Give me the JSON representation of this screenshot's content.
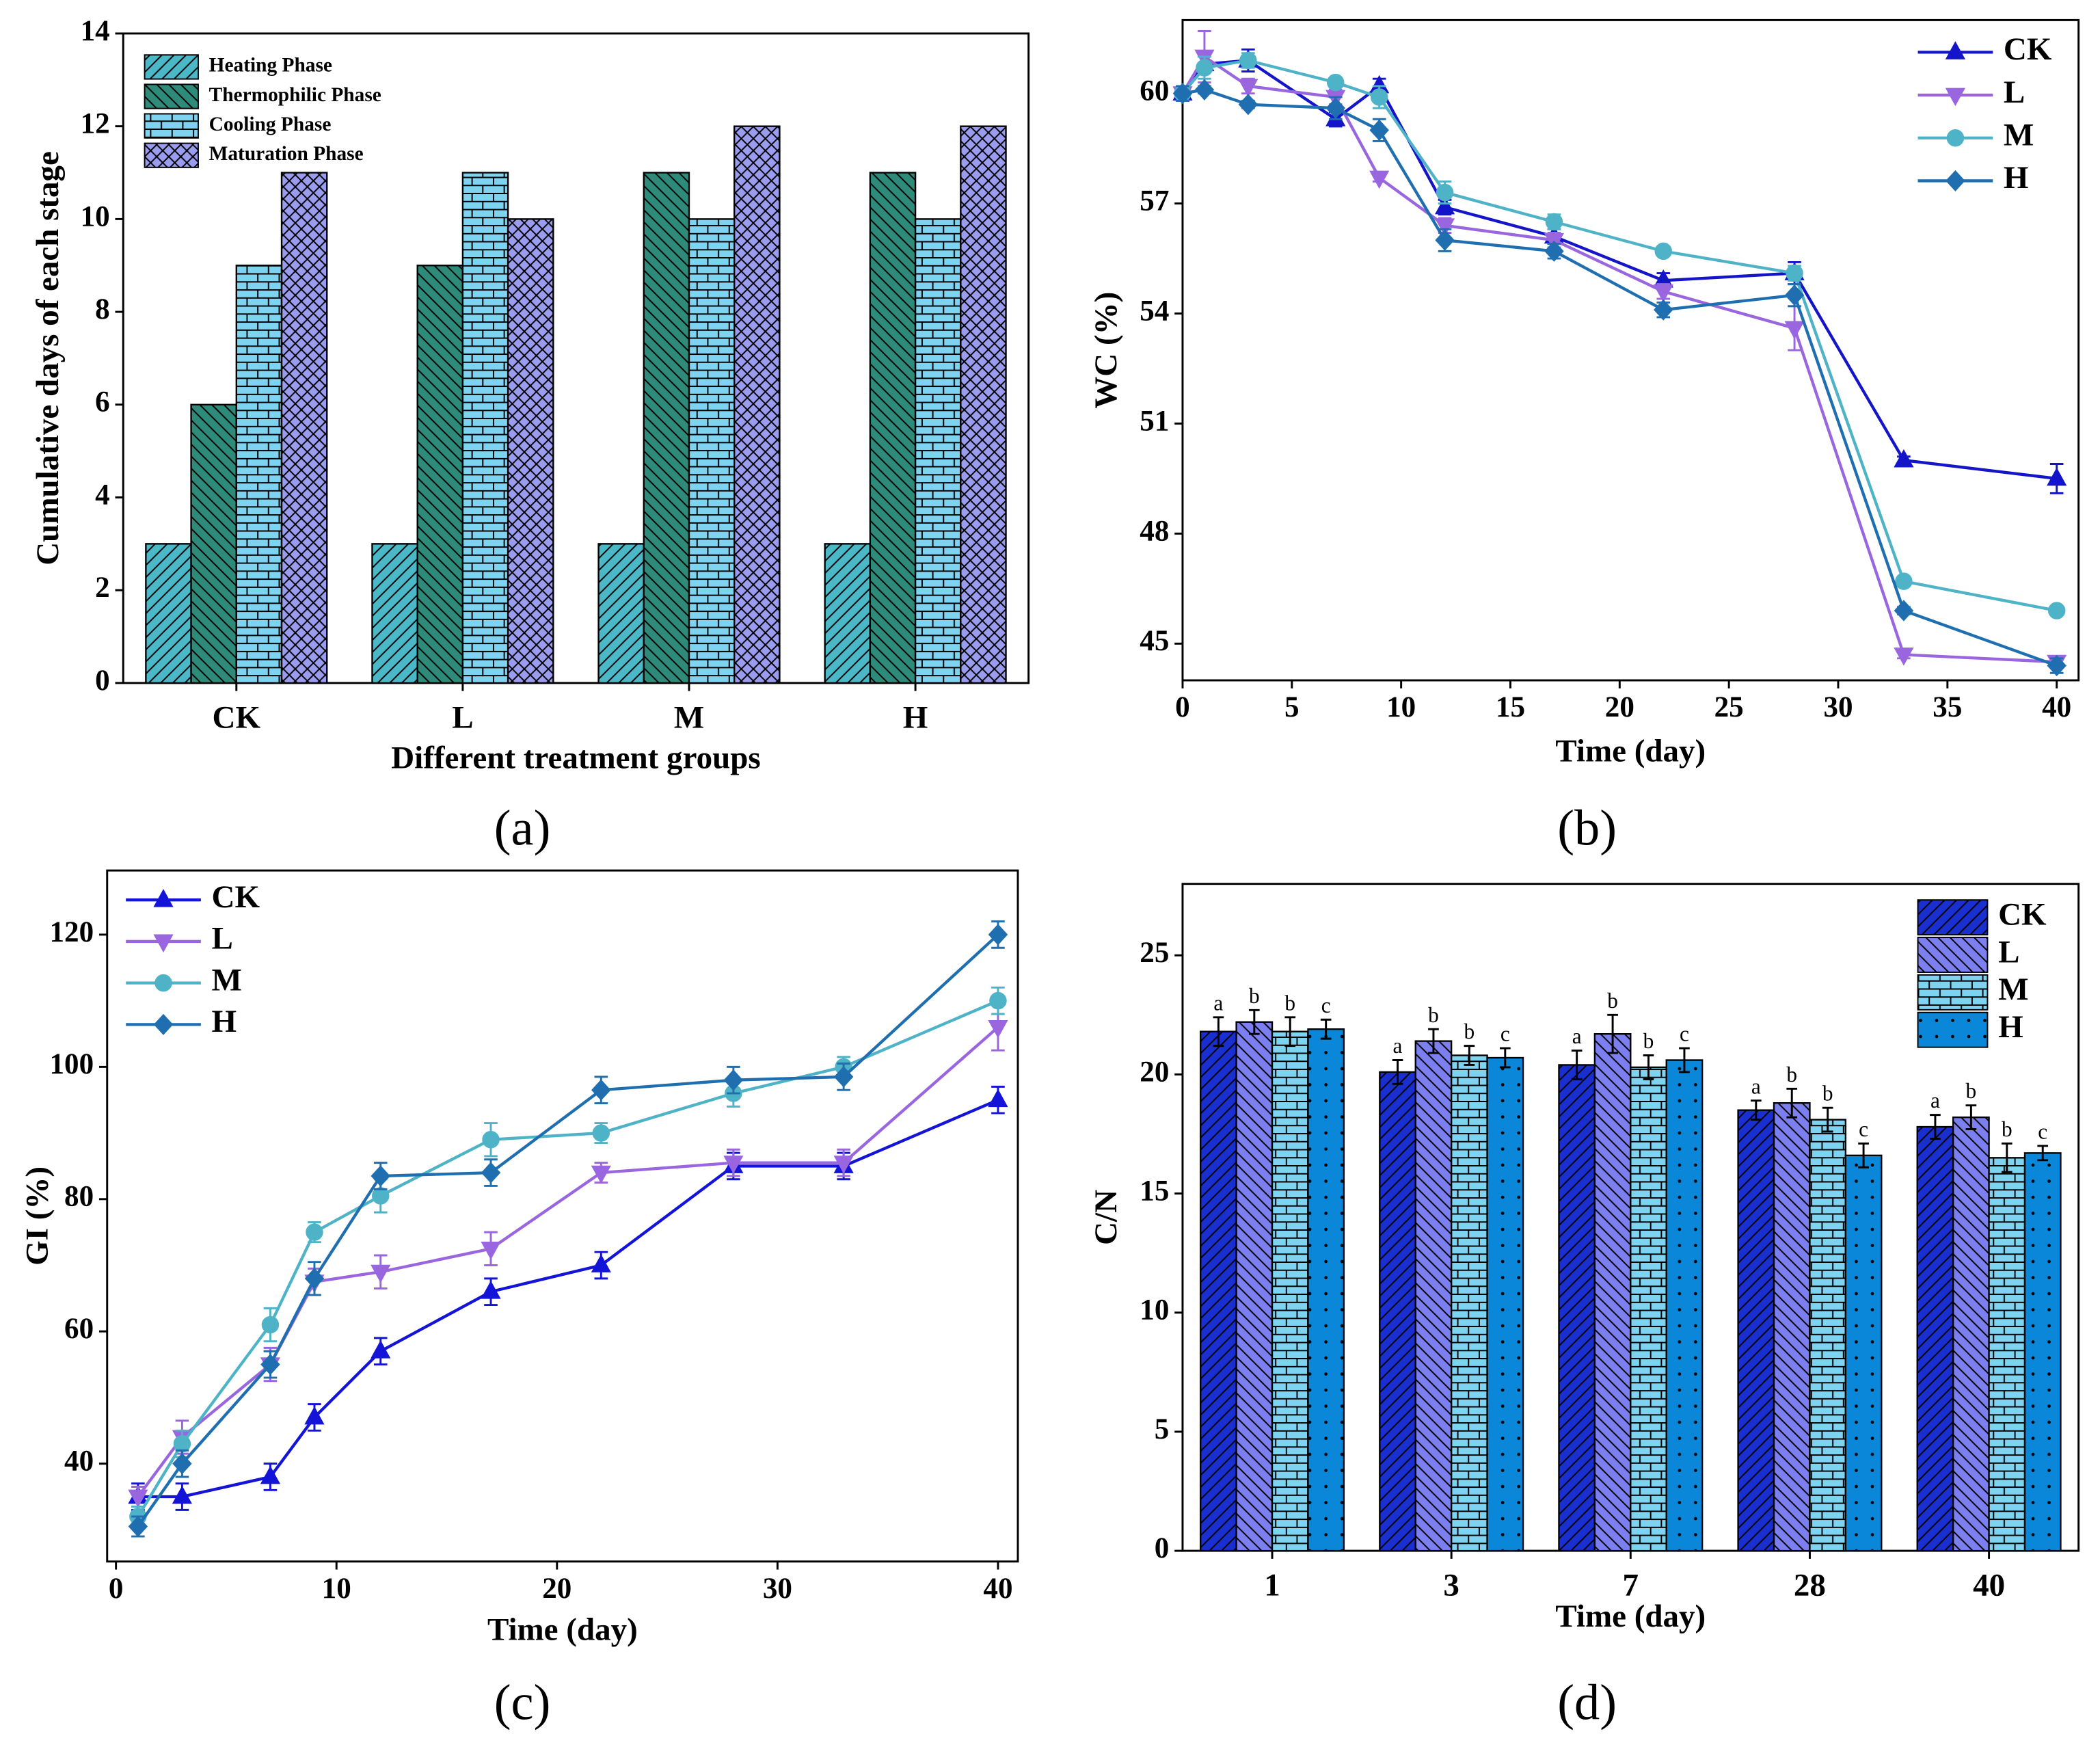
{
  "chart_data": [
    {
      "type": "bar",
      "panel_label": "(a)",
      "xlabel": "Different treatment groups",
      "ylabel": "Cumulative days of each stage",
      "categories": [
        "CK",
        "L",
        "M",
        "H"
      ],
      "ylim": [
        0,
        14
      ],
      "yticks": [
        0,
        2,
        4,
        6,
        8,
        10,
        12,
        14
      ],
      "legend": "upper left",
      "series": [
        {
          "name": "Heating Phase",
          "color": "#4bb8c8",
          "pattern": "hatch",
          "values": [
            3,
            3,
            3,
            3
          ]
        },
        {
          "name": "Thermophilic Phase",
          "color": "#2e8b7a",
          "pattern": "backhatch",
          "values": [
            6,
            9,
            11,
            11
          ]
        },
        {
          "name": "Cooling Phase",
          "color": "#7dd3f0",
          "pattern": "brick",
          "values": [
            9,
            11,
            10,
            10
          ]
        },
        {
          "name": "Maturation Phase",
          "color": "#9a9cf0",
          "pattern": "crosshatch",
          "values": [
            11,
            10,
            12,
            12
          ]
        }
      ]
    },
    {
      "type": "line",
      "panel_label": "(b)",
      "xlabel": "Time (day)",
      "ylabel": "WC (%)",
      "x": [
        0,
        1,
        3,
        7,
        9,
        12,
        17,
        22,
        28,
        33,
        40
      ],
      "xlim": [
        0,
        41
      ],
      "xticks": [
        0,
        5,
        10,
        15,
        20,
        25,
        30,
        35,
        40
      ],
      "ylim": [
        44,
        62
      ],
      "yticks": [
        45,
        48,
        51,
        54,
        57,
        60
      ],
      "legend": "upper right",
      "series": [
        {
          "name": "CK",
          "color": "#1414c8",
          "marker": "triangle",
          "values": [
            60,
            60.8,
            60.9,
            59.3,
            60.2,
            56.9,
            56.1,
            54.9,
            55.1,
            50.0,
            49.5
          ],
          "errors": [
            0.2,
            0.2,
            0.3,
            0.2,
            0.2,
            0.2,
            0.2,
            0.2,
            0.3,
            0.1,
            0.4
          ]
        },
        {
          "name": "L",
          "color": "#9966e0",
          "marker": "triangle-down",
          "values": [
            60,
            61,
            60.2,
            59.9,
            57.7,
            56.4,
            56.0,
            54.6,
            53.6,
            44.7,
            44.5
          ],
          "errors": [
            0.2,
            0.7,
            0.2,
            0.2,
            0.1,
            0.2,
            0.2,
            0.2,
            0.6,
            0.1,
            0.1
          ]
        },
        {
          "name": "M",
          "color": "#4fb3c8",
          "marker": "circle",
          "values": [
            60,
            60.7,
            60.9,
            60.3,
            59.9,
            57.3,
            56.5,
            55.7,
            55.1,
            46.7,
            45.9
          ],
          "errors": [
            0.2,
            0.3,
            0.2,
            0.1,
            0.3,
            0.3,
            0.2,
            0.1,
            0.2,
            0.1,
            0.1
          ]
        },
        {
          "name": "H",
          "color": "#1f6fb0",
          "marker": "diamond",
          "values": [
            60,
            60.1,
            59.7,
            59.6,
            59.0,
            56.0,
            55.7,
            54.1,
            54.5,
            45.9,
            44.4
          ],
          "errors": [
            0.2,
            0.1,
            0.1,
            0.3,
            0.3,
            0.3,
            0.2,
            0.2,
            0.3,
            0.1,
            0.2
          ]
        }
      ]
    },
    {
      "type": "line",
      "panel_label": "(c)",
      "xlabel": "Time (day)",
      "ylabel": "GI (%)",
      "x": [
        1,
        3,
        7,
        9,
        12,
        17,
        22,
        28,
        33,
        40
      ],
      "xlim": [
        -0.4,
        40.9
      ],
      "xticks": [
        0,
        10,
        20,
        30,
        40
      ],
      "ylim": [
        25.2,
        129.7
      ],
      "yticks": [
        40,
        60,
        80,
        100,
        120
      ],
      "legend": "upper left",
      "series": [
        {
          "name": "CK",
          "color": "#1414d8",
          "marker": "triangle",
          "values": [
            35,
            35,
            38,
            47,
            57,
            66,
            70,
            85,
            85,
            95
          ],
          "errors": [
            2,
            2,
            2,
            2,
            2,
            2,
            2,
            2,
            2,
            2
          ]
        },
        {
          "name": "L",
          "color": "#9966e0",
          "marker": "triangle-down",
          "values": [
            35,
            44,
            55,
            67.5,
            69,
            72.5,
            84,
            85.5,
            85.5,
            106
          ],
          "errors": [
            1.5,
            2.5,
            2.5,
            2,
            2.5,
            2.5,
            1.5,
            2,
            2,
            3.5
          ]
        },
        {
          "name": "M",
          "color": "#4fb3c8",
          "marker": "circle",
          "values": [
            32,
            43,
            61,
            75,
            80.5,
            89,
            90,
            96,
            100,
            110
          ],
          "errors": [
            1.5,
            2,
            2.5,
            1.5,
            2.5,
            2.5,
            1.5,
            2,
            1.5,
            2
          ]
        },
        {
          "name": "H",
          "color": "#1f6fb0",
          "marker": "diamond",
          "values": [
            30.5,
            40,
            55,
            68,
            83.5,
            84,
            96.5,
            98,
            98.5,
            120
          ],
          "errors": [
            1.5,
            2,
            2,
            2.5,
            2,
            2,
            2,
            2,
            2,
            2
          ]
        }
      ]
    },
    {
      "type": "bar",
      "panel_label": "(d)",
      "xlabel": "Time (day)",
      "ylabel": "C/N",
      "categories": [
        "1",
        "3",
        "7",
        "28",
        "40"
      ],
      "ylim": [
        0,
        28
      ],
      "yticks": [
        0,
        5,
        10,
        15,
        20,
        25
      ],
      "legend": "upper right",
      "series": [
        {
          "name": "CK",
          "color": "#1a2fd0",
          "pattern": "hatch",
          "values": [
            21.8,
            20.1,
            20.4,
            18.5,
            17.8
          ],
          "errors": [
            0.6,
            0.5,
            0.6,
            0.4,
            0.5
          ],
          "labels": [
            "a",
            "a",
            "a",
            "a",
            "a"
          ]
        },
        {
          "name": "L",
          "color": "#7b7ff0",
          "pattern": "backhatch",
          "values": [
            22.2,
            21.4,
            21.7,
            18.8,
            18.2
          ],
          "errors": [
            0.5,
            0.5,
            0.8,
            0.6,
            0.5
          ],
          "labels": [
            "b",
            "b",
            "b",
            "b",
            "b"
          ]
        },
        {
          "name": "M",
          "color": "#7dd3f0",
          "pattern": "brick",
          "values": [
            21.8,
            20.8,
            20.3,
            18.1,
            16.5
          ],
          "errors": [
            0.6,
            0.4,
            0.5,
            0.5,
            0.6
          ],
          "labels": [
            "b",
            "b",
            "b",
            "b",
            "b"
          ]
        },
        {
          "name": "H",
          "color": "#0a87d8",
          "pattern": "dots",
          "values": [
            21.9,
            20.7,
            20.6,
            16.6,
            16.7
          ],
          "errors": [
            0.4,
            0.4,
            0.5,
            0.5,
            0.3
          ],
          "labels": [
            "c",
            "c",
            "c",
            "c",
            "c"
          ]
        }
      ]
    }
  ]
}
